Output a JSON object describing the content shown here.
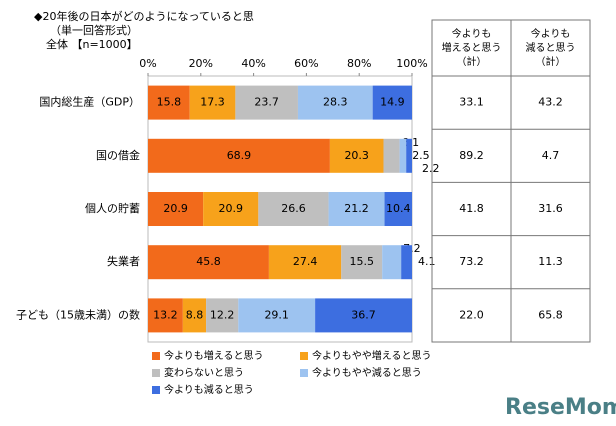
{
  "chart_data": {
    "type": "stacked-bar-horizontal",
    "title": "◆20年後の日本がどのようになっていると思",
    "subtitle": "（単一回答形式）",
    "sample": "全体 【n=1000】",
    "categories": [
      "国内総生産（GDP）",
      "国の借金",
      "個人の貯蓄",
      "失業者",
      "子ども（15歳未満）の数"
    ],
    "series": [
      {
        "name": "今よりも増えると思う",
        "color": "#f26a1b",
        "values": [
          15.8,
          68.9,
          20.9,
          45.8,
          13.2
        ]
      },
      {
        "name": "今よりもやや増えると思う",
        "color": "#f7a21b",
        "values": [
          17.3,
          20.3,
          20.9,
          27.4,
          8.8
        ]
      },
      {
        "name": "変わらないと思う",
        "color": "#bfbfbf",
        "values": [
          23.7,
          6.1,
          26.6,
          15.5,
          12.2
        ]
      },
      {
        "name": "今よりもやや減ると思う",
        "color": "#9dc3f0",
        "values": [
          28.3,
          2.5,
          21.2,
          7.2,
          29.1
        ]
      },
      {
        "name": "今よりも減ると思う",
        "color": "#3d6ee0",
        "values": [
          14.9,
          2.2,
          10.4,
          4.1,
          36.7
        ]
      }
    ],
    "xlim": [
      0,
      100
    ],
    "xticks": [
      {
        "value": 0,
        "label": "0%"
      },
      {
        "value": 20,
        "label": "20%"
      },
      {
        "value": 40,
        "label": "40%"
      },
      {
        "value": 60,
        "label": "60%"
      },
      {
        "value": 80,
        "label": "80%"
      },
      {
        "value": 100,
        "label": "100%"
      }
    ]
  },
  "table": {
    "headers": [
      [
        "今よりも",
        "増えると思う",
        "（計）"
      ],
      [
        "今よりも",
        "減ると思う",
        "（計）"
      ]
    ],
    "rows": [
      [
        "33.1",
        "43.2"
      ],
      [
        "89.2",
        "4.7"
      ],
      [
        "41.8",
        "31.6"
      ],
      [
        "73.2",
        "11.3"
      ],
      [
        "22.0",
        "65.8"
      ]
    ]
  },
  "watermark": "ReseMom"
}
